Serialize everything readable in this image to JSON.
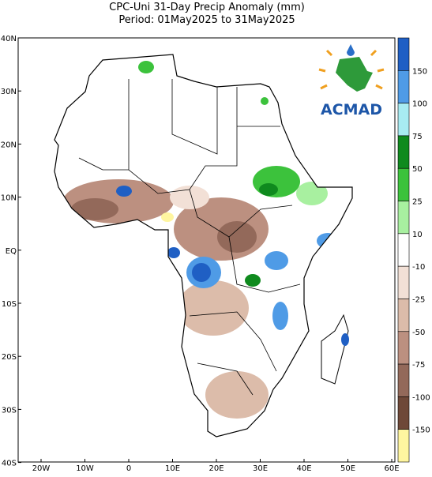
{
  "title": [
    "CPC-Uni 31-Day Precip Anomaly (mm)",
    "Period: 01May2025 to 31May2025"
  ],
  "map": {
    "lat_labels": [
      "40N",
      "30N",
      "20N",
      "10N",
      "EQ",
      "10S",
      "20S",
      "30S",
      "40S"
    ],
    "lon_labels": [
      "20W",
      "10W",
      "0",
      "10E",
      "20E",
      "30E",
      "40E",
      "50E",
      "60E"
    ]
  },
  "legend": {
    "labels": [
      150,
      100,
      75,
      50,
      25,
      10,
      -10,
      -25,
      -50,
      -75,
      -100,
      -150
    ],
    "colors": [
      "#1f5fc4",
      "#4f9be6",
      "#a8ecf2",
      "#0f8a1e",
      "#3cc23c",
      "#a8f0a0",
      "#ffffff",
      "#f2e0d6",
      "#dcbcaa",
      "#bc9080",
      "#93695a",
      "#6e4838",
      "#fff6a0"
    ]
  },
  "logo": {
    "text": "ACMAD"
  }
}
